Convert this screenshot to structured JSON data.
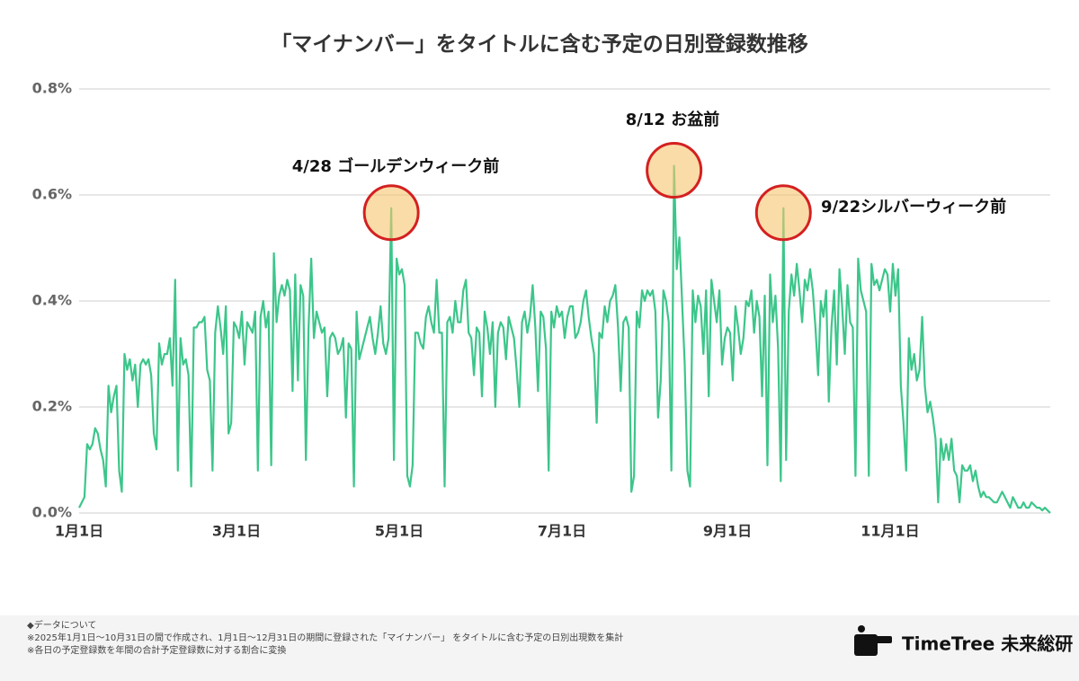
{
  "chart_data": {
    "type": "line",
    "title": "「マイナンバー」をタイトルに含む予定の日別登録数推移",
    "categories": [
      "1月1日",
      null,
      null,
      null,
      null,
      null,
      null,
      null,
      null,
      null,
      null,
      null,
      null,
      null,
      null,
      null,
      null,
      null,
      null,
      null,
      null,
      null,
      null,
      null,
      null,
      null,
      null,
      null,
      null,
      null,
      null,
      null,
      null,
      null,
      null,
      null,
      null,
      null,
      null,
      null,
      null,
      null,
      null,
      null,
      null,
      null,
      null,
      null,
      null,
      null,
      null,
      null,
      null,
      null,
      null,
      null,
      null,
      null,
      null,
      "3月1日",
      null,
      null,
      null,
      null,
      null,
      null,
      null,
      null,
      null,
      null,
      null,
      null,
      null,
      null,
      null,
      null,
      null,
      null,
      null,
      null,
      null,
      null,
      null,
      null,
      null,
      null,
      null,
      null,
      null,
      null,
      null,
      null,
      null,
      null,
      null,
      null,
      null,
      null,
      null,
      null,
      null,
      null,
      null,
      null,
      null,
      null,
      null,
      null,
      null,
      null,
      null,
      null,
      null,
      null,
      null,
      null,
      null,
      null,
      null,
      null,
      "5月1日",
      null,
      null,
      null,
      null,
      null,
      null,
      null,
      null,
      null,
      null,
      null,
      null,
      null,
      null,
      null,
      null,
      null,
      null,
      null,
      null,
      null,
      null,
      null,
      null,
      null,
      null,
      null,
      null,
      null,
      null,
      null,
      null,
      null,
      null,
      null,
      null,
      null,
      null,
      null,
      null,
      null,
      null,
      null,
      null,
      null,
      null,
      null,
      null,
      null,
      null,
      null,
      null,
      null,
      null,
      null,
      null,
      null,
      null,
      null,
      null,
      "7月1日",
      null,
      null,
      null,
      null,
      null,
      null,
      null,
      null,
      null,
      null,
      null,
      null,
      null,
      null,
      null,
      null,
      null,
      null,
      null,
      null,
      null,
      null,
      null,
      null,
      null,
      null,
      null,
      null,
      null,
      null,
      null,
      null,
      null,
      null,
      null,
      null,
      null,
      null,
      null,
      null,
      null,
      null,
      null,
      null,
      null,
      null,
      null,
      null,
      null,
      null,
      null,
      null,
      null,
      null,
      null,
      null,
      null,
      null,
      null,
      null,
      null,
      "9月1日",
      null,
      null,
      null,
      null,
      null,
      null,
      null,
      null,
      null,
      null,
      null,
      null,
      null,
      null,
      null,
      null,
      null,
      null,
      null,
      null,
      null,
      null,
      null,
      null,
      null,
      null,
      null,
      null,
      null,
      null,
      null,
      null,
      null,
      null,
      null,
      null,
      null,
      null,
      null,
      null,
      null,
      null,
      null,
      null,
      null,
      null,
      null,
      null,
      null,
      null,
      null,
      null,
      null,
      null,
      null,
      null,
      null,
      null,
      null,
      null,
      "11月1日",
      null,
      null,
      null,
      null,
      null,
      null,
      null,
      null,
      null,
      null,
      null,
      null,
      null,
      null,
      null,
      null,
      null,
      null,
      null,
      null,
      null,
      null,
      null,
      null,
      null,
      null,
      null,
      null,
      null,
      null,
      null,
      null,
      null,
      null,
      null,
      null,
      null,
      null,
      null,
      null,
      null,
      null,
      null,
      null,
      null,
      null,
      null,
      null,
      null,
      null,
      null,
      null,
      null,
      null,
      null,
      null,
      null,
      null,
      null,
      null
    ],
    "series": [
      {
        "color": "#3cc68a",
        "values": [
          0.01,
          0.02,
          0.03,
          0.13,
          0.12,
          0.13,
          0.16,
          0.15,
          0.12,
          0.1,
          0.05,
          0.24,
          0.19,
          0.22,
          0.24,
          0.08,
          0.04,
          0.3,
          0.27,
          0.29,
          0.25,
          0.28,
          0.2,
          0.28,
          0.29,
          0.28,
          0.29,
          0.26,
          0.15,
          0.12,
          0.32,
          0.28,
          0.3,
          0.3,
          0.33,
          0.24,
          0.44,
          0.08,
          0.33,
          0.28,
          0.29,
          0.26,
          0.05,
          0.35,
          0.35,
          0.36,
          0.36,
          0.37,
          0.27,
          0.25,
          0.08,
          0.34,
          0.39,
          0.35,
          0.3,
          0.39,
          0.15,
          0.17,
          0.36,
          0.35,
          0.33,
          0.38,
          0.28,
          0.36,
          0.35,
          0.34,
          0.38,
          0.08,
          0.37,
          0.4,
          0.35,
          0.38,
          0.09,
          0.49,
          0.36,
          0.41,
          0.43,
          0.41,
          0.44,
          0.42,
          0.23,
          0.45,
          0.25,
          0.43,
          0.41,
          0.1,
          0.35,
          0.48,
          0.33,
          0.38,
          0.36,
          0.34,
          0.35,
          0.22,
          0.33,
          0.34,
          0.33,
          0.3,
          0.31,
          0.33,
          0.18,
          0.32,
          0.31,
          0.05,
          0.38,
          0.29,
          0.31,
          0.33,
          0.35,
          0.37,
          0.33,
          0.3,
          0.34,
          0.39,
          0.32,
          0.3,
          0.33,
          0.575,
          0.1,
          0.48,
          0.45,
          0.46,
          0.43,
          0.07,
          0.05,
          0.09,
          0.34,
          0.34,
          0.32,
          0.31,
          0.37,
          0.39,
          0.36,
          0.34,
          0.44,
          0.34,
          0.34,
          0.05,
          0.36,
          0.37,
          0.34,
          0.4,
          0.36,
          0.36,
          0.42,
          0.44,
          0.34,
          0.33,
          0.26,
          0.35,
          0.34,
          0.22,
          0.38,
          0.35,
          0.3,
          0.36,
          0.2,
          0.34,
          0.36,
          0.35,
          0.29,
          0.37,
          0.35,
          0.33,
          0.27,
          0.2,
          0.36,
          0.38,
          0.34,
          0.37,
          0.43,
          0.35,
          0.23,
          0.38,
          0.37,
          0.31,
          0.08,
          0.38,
          0.35,
          0.39,
          0.37,
          0.38,
          0.33,
          0.37,
          0.39,
          0.39,
          0.33,
          0.34,
          0.36,
          0.4,
          0.42,
          0.37,
          0.33,
          0.3,
          0.17,
          0.34,
          0.33,
          0.39,
          0.36,
          0.4,
          0.41,
          0.43,
          0.35,
          0.23,
          0.36,
          0.37,
          0.35,
          0.04,
          0.07,
          0.38,
          0.35,
          0.42,
          0.4,
          0.42,
          0.41,
          0.42,
          0.38,
          0.18,
          0.25,
          0.42,
          0.4,
          0.36,
          0.08,
          0.655,
          0.46,
          0.52,
          0.4,
          0.28,
          0.08,
          0.05,
          0.42,
          0.36,
          0.41,
          0.39,
          0.3,
          0.42,
          0.22,
          0.44,
          0.4,
          0.36,
          0.42,
          0.28,
          0.33,
          0.35,
          0.34,
          0.25,
          0.39,
          0.35,
          0.3,
          0.33,
          0.4,
          0.39,
          0.42,
          0.34,
          0.4,
          0.37,
          0.22,
          0.41,
          0.09,
          0.45,
          0.36,
          0.41,
          0.31,
          0.06,
          0.575,
          0.1,
          0.38,
          0.45,
          0.41,
          0.47,
          0.42,
          0.36,
          0.44,
          0.42,
          0.46,
          0.42,
          0.35,
          0.26,
          0.4,
          0.37,
          0.42,
          0.21,
          0.35,
          0.42,
          0.28,
          0.46,
          0.39,
          0.3,
          0.43,
          0.36,
          0.35,
          0.07,
          0.48,
          0.42,
          0.4,
          0.38,
          0.07,
          0.47,
          0.43,
          0.44,
          0.42,
          0.44,
          0.46,
          0.45,
          0.38,
          0.47,
          0.41,
          0.46,
          0.24,
          0.17,
          0.08,
          0.33,
          0.27,
          0.3,
          0.25,
          0.27,
          0.37,
          0.24,
          0.19,
          0.21,
          0.18,
          0.14,
          0.02,
          0.14,
          0.1,
          0.13,
          0.1,
          0.14,
          0.08,
          0.07,
          0.02,
          0.09,
          0.08,
          0.08,
          0.09,
          0.06,
          0.08,
          0.05,
          0.03,
          0.04,
          0.03,
          0.03,
          0.025,
          0.02,
          0.02,
          0.03,
          0.04,
          0.03,
          0.02,
          0.01,
          0.03,
          0.02,
          0.01,
          0.01,
          0.02,
          0.01,
          0.01,
          0.02,
          0.015,
          0.01,
          0.01,
          0.005,
          0.01,
          0.005,
          0.0
        ]
      }
    ],
    "ylim": [
      0,
      0.8
    ],
    "yticks": [
      {
        "value": 0,
        "label": "0.0%"
      },
      {
        "value": 0.2,
        "label": "0.2%"
      },
      {
        "value": 0.4,
        "label": "0.4%"
      },
      {
        "value": 0.6,
        "label": "0.6%"
      },
      {
        "value": 0.8,
        "label": "0.8%"
      }
    ],
    "grid": true,
    "annotations": [
      "4/28 ゴールデンウィーク前",
      "8/12 お盆前",
      "9/22シルバーウィーク前"
    ],
    "notes": [
      "◆データについて",
      "※2025年1月1日〜10月31日の間で作成され、1月1日〜12月31日の期間に登録された「マイナンバー」 をタイトルに含む予定の日別出現数を集計",
      "※各日の予定登録数を年間の合計予定登録数に対する割合に変換"
    ],
    "brand": "TimeTree 未来総研"
  }
}
